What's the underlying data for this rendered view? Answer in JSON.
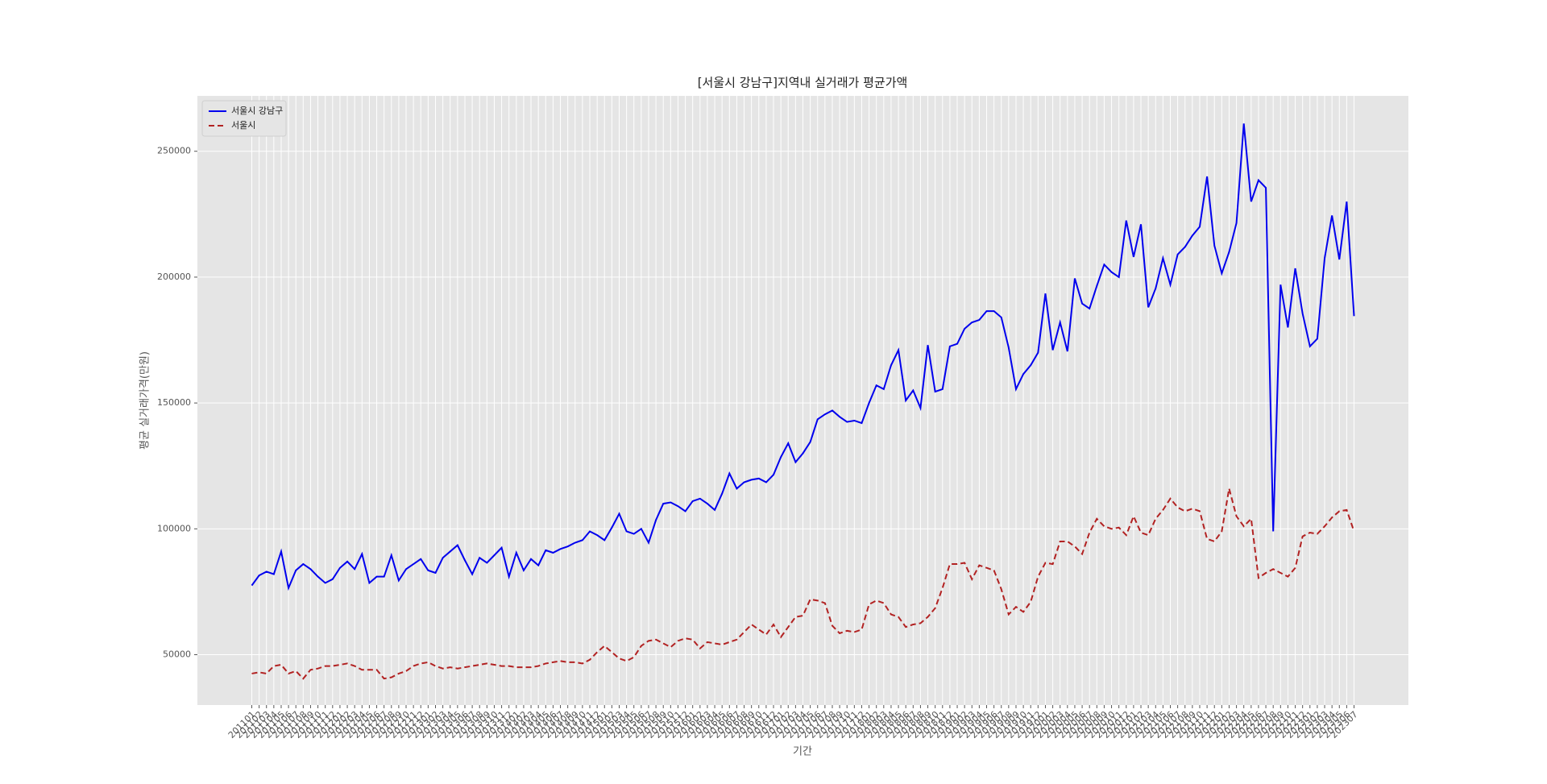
{
  "chart_data": {
    "type": "line",
    "title": "[서울시 강남구]지역내 실거래가 평균가액",
    "x_label": "기간",
    "y_label": "평균 실거래가격(만원)",
    "categories": [
      "201101",
      "201102",
      "201103",
      "201104",
      "201105",
      "201106",
      "201107",
      "201108",
      "201109",
      "201110",
      "201111",
      "201112",
      "201201",
      "201202",
      "201203",
      "201204",
      "201205",
      "201206",
      "201207",
      "201208",
      "201209",
      "201210",
      "201211",
      "201212",
      "201301",
      "201302",
      "201303",
      "201304",
      "201305",
      "201306",
      "201307",
      "201308",
      "201309",
      "201310",
      "201311",
      "201312",
      "201401",
      "201402",
      "201403",
      "201404",
      "201405",
      "201406",
      "201407",
      "201408",
      "201409",
      "201410",
      "201411",
      "201412",
      "201501",
      "201502",
      "201503",
      "201504",
      "201505",
      "201506",
      "201507",
      "201508",
      "201509",
      "201510",
      "201511",
      "201512",
      "201601",
      "201602",
      "201603",
      "201604",
      "201605",
      "201606",
      "201607",
      "201608",
      "201609",
      "201610",
      "201611",
      "201612",
      "201701",
      "201702",
      "201703",
      "201704",
      "201705",
      "201706",
      "201707",
      "201708",
      "201709",
      "201710",
      "201711",
      "201712",
      "201801",
      "201802",
      "201803",
      "201804",
      "201805",
      "201806",
      "201807",
      "201808",
      "201809",
      "201810",
      "201811",
      "201812",
      "201901",
      "201902",
      "201903",
      "201904",
      "201905",
      "201906",
      "201907",
      "201908",
      "201909",
      "201910",
      "201911",
      "201912",
      "202001",
      "202002",
      "202003",
      "202004",
      "202005",
      "202006",
      "202007",
      "202008",
      "202009",
      "202010",
      "202011",
      "202012",
      "202101",
      "202102",
      "202103",
      "202104",
      "202105",
      "202106",
      "202107",
      "202108",
      "202109",
      "202110",
      "202111",
      "202112",
      "202201",
      "202202",
      "202203",
      "202204",
      "202205",
      "202206",
      "202207",
      "202208",
      "202209",
      "202210",
      "202211",
      "202212",
      "202301",
      "202302",
      "202303",
      "202304",
      "202305",
      "202306",
      "202307"
    ],
    "series": [
      {
        "name": "서울시 강남구",
        "color": "#0000ee",
        "linestyle": "solid",
        "values": [
          77500,
          81500,
          83000,
          82000,
          91000,
          76500,
          83500,
          86000,
          84000,
          81000,
          78500,
          80000,
          84500,
          87000,
          84000,
          90000,
          78500,
          81000,
          81000,
          89500,
          79500,
          84000,
          86000,
          88000,
          83500,
          82500,
          88500,
          91000,
          93500,
          87500,
          82000,
          88500,
          86500,
          89500,
          92500,
          81000,
          90500,
          83500,
          88000,
          85500,
          91500,
          90500,
          92000,
          93000,
          94500,
          95500,
          99000,
          97500,
          95500,
          100500,
          106000,
          99000,
          98000,
          100000,
          94500,
          103500,
          110000,
          110500,
          109000,
          107000,
          111000,
          112000,
          110000,
          107500,
          114000,
          122000,
          116000,
          118500,
          119500,
          120000,
          118500,
          121500,
          128500,
          134000,
          126500,
          130000,
          134500,
          143500,
          145500,
          147000,
          144500,
          142500,
          143000,
          142000,
          150000,
          157000,
          155500,
          165000,
          171000,
          151000,
          155000,
          148000,
          173000,
          154500,
          155500,
          172500,
          173500,
          179500,
          182000,
          183000,
          186500,
          186500,
          184000,
          172000,
          155500,
          161500,
          165000,
          170000,
          193500,
          171000,
          182000,
          170500,
          199500,
          189500,
          187500,
          196500,
          205000,
          202000,
          200000,
          222500,
          208000,
          221000,
          188000,
          195500,
          207500,
          197000,
          209000,
          212000,
          216500,
          220000,
          240000,
          212500,
          201500,
          210000,
          221500,
          261000,
          230000,
          238500,
          235500,
          99000,
          197000,
          180000,
          203500,
          185500,
          172500,
          175500,
          207500,
          224500,
          207000,
          230000,
          184500
        ]
      },
      {
        "name": "서울시",
        "color": "#b22222",
        "linestyle": "dashed",
        "values": [
          42500,
          43000,
          42500,
          45500,
          46000,
          42500,
          43500,
          40500,
          44000,
          44500,
          45500,
          45500,
          46000,
          46500,
          45500,
          44000,
          44000,
          44000,
          40500,
          41000,
          42500,
          43500,
          45500,
          46500,
          47000,
          45500,
          44500,
          45000,
          44500,
          45000,
          45500,
          46000,
          46500,
          46000,
          45500,
          45500,
          45000,
          45000,
          45000,
          45500,
          46500,
          47000,
          47500,
          47000,
          47000,
          46500,
          48000,
          51000,
          53500,
          51000,
          48500,
          47500,
          49000,
          53500,
          55500,
          56000,
          54500,
          53000,
          55500,
          56500,
          56000,
          52500,
          55000,
          54500,
          54000,
          55000,
          56000,
          59000,
          62000,
          60000,
          58000,
          62000,
          57000,
          61000,
          65000,
          65500,
          72000,
          71500,
          70500,
          61500,
          58500,
          59500,
          59000,
          60000,
          70000,
          71500,
          70500,
          66000,
          65000,
          61000,
          62000,
          62500,
          65000,
          68500,
          76500,
          86000,
          86000,
          86500,
          80000,
          85500,
          84500,
          83500,
          76000,
          66000,
          69000,
          67000,
          71000,
          81000,
          86500,
          86000,
          95000,
          95000,
          93000,
          90000,
          98500,
          104000,
          101000,
          100000,
          100500,
          97500,
          105000,
          98500,
          97500,
          104000,
          107500,
          112000,
          108500,
          107000,
          108000,
          107000,
          96000,
          95000,
          99000,
          116000,
          105000,
          101000,
          104000,
          80500,
          82500,
          84000,
          82500,
          81000,
          84500,
          97000,
          98500,
          98000,
          101000,
          104500,
          107000,
          107500,
          99000
        ]
      }
    ],
    "ylim": [
      30000,
      272000
    ],
    "yticks": [
      50000,
      100000,
      150000,
      200000,
      250000
    ],
    "grid": true,
    "legend": "upper left"
  }
}
